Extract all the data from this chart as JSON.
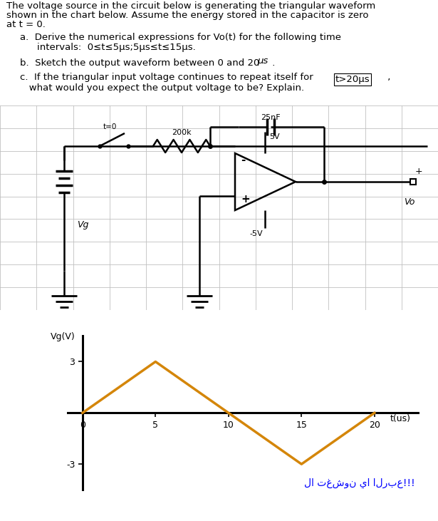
{
  "background_color": "#ffffff",
  "grid_color": "#d0d0d0",
  "waveform_color": "#D4860A",
  "waveform_x": [
    0,
    5,
    10,
    15,
    20
  ],
  "waveform_y": [
    0,
    3,
    0,
    -3,
    0
  ],
  "ylabel": "Vg(V)",
  "xlabel": "t(us)",
  "yticks": [
    -3,
    3
  ],
  "xticks": [
    0,
    5,
    10,
    15,
    20
  ],
  "ylim": [
    -4.5,
    4.5
  ],
  "xlim": [
    -1,
    23
  ],
  "waveform_linewidth": 2.5,
  "arabic_text": "لا تغشون يا الربع!!!",
  "arabic_color": "#0000ff",
  "text_font_size": 9.5,
  "axis_label_fontsize": 9
}
